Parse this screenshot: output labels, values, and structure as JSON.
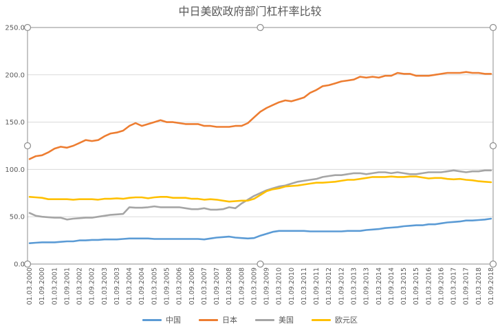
{
  "chart_data": {
    "type": "line",
    "title": "中日美欧政府部门杠杆率比较",
    "xlabel": "",
    "ylabel": "",
    "ylim": [
      0,
      250
    ],
    "yticks": [
      "0.0",
      "50.0",
      "100.0",
      "150.0",
      "200.0",
      "250.0"
    ],
    "grid": "horizontal",
    "legend_position": "bottom",
    "x": [
      "01.03.2000",
      "01.06.2000",
      "01.09.2000",
      "01.12.2000",
      "01.03.2001",
      "01.06.2001",
      "01.09.2001",
      "01.12.2001",
      "01.03.2002",
      "01.06.2002",
      "01.09.2002",
      "01.12.2002",
      "01.03.2003",
      "01.06.2003",
      "01.09.2003",
      "01.12.2003",
      "01.03.2004",
      "01.06.2004",
      "01.09.2004",
      "01.12.2004",
      "01.03.2005",
      "01.06.2005",
      "01.09.2005",
      "01.12.2005",
      "01.03.2006",
      "01.06.2006",
      "01.09.2006",
      "01.12.2006",
      "01.03.2007",
      "01.06.2007",
      "01.09.2007",
      "01.12.2007",
      "01.03.2008",
      "01.06.2008",
      "01.09.2008",
      "01.12.2008",
      "01.03.2009",
      "01.06.2009",
      "01.09.2009",
      "01.12.2009",
      "01.03.2010",
      "01.06.2010",
      "01.09.2010",
      "01.12.2010",
      "01.03.2011",
      "01.06.2011",
      "01.09.2011",
      "01.12.2011",
      "01.03.2012",
      "01.06.2012",
      "01.09.2012",
      "01.12.2012",
      "01.03.2013",
      "01.06.2013",
      "01.09.2013",
      "01.12.2013",
      "01.03.2014",
      "01.06.2014",
      "01.09.2014",
      "01.12.2014",
      "01.03.2015",
      "01.06.2015",
      "01.09.2015",
      "01.12.2015",
      "01.03.2016",
      "01.06.2016",
      "01.09.2016",
      "01.12.2016",
      "01.03.2017",
      "01.06.2017",
      "01.09.2017",
      "01.12.2017",
      "01.03.2018",
      "01.06.2018",
      "01.09.2018"
    ],
    "x_tick_labels": [
      "01.03.2000",
      "01.09.2000",
      "01.03.2001",
      "01.09.2001",
      "01.03.2002",
      "01.09.2002",
      "01.03.2003",
      "01.09.2003",
      "01.03.2004",
      "01.09.2004",
      "01.03.2005",
      "01.09.2005",
      "01.03.2006",
      "01.09.2006",
      "01.03.2007",
      "01.09.2007",
      "01.03.2008",
      "01.09.2008",
      "01.03.2009",
      "01.09.2009",
      "01.03.2010",
      "01.09.2010",
      "01.03.2011",
      "01.09.2011",
      "01.03.2012",
      "01.09.2012",
      "01.03.2013",
      "01.09.2013",
      "01.03.2014",
      "01.09.2014",
      "01.03.2015",
      "01.09.2015",
      "01.03.2016",
      "01.09.2016",
      "01.03.2017",
      "01.09.2017",
      "01.03.2018",
      "01.09.2018"
    ],
    "series": [
      {
        "name": "中国",
        "color": "#5B9BD5",
        "values": [
          22,
          22.5,
          23,
          23,
          23,
          23.5,
          24,
          24,
          25,
          25,
          25.5,
          25.5,
          26,
          26,
          26,
          26.5,
          27,
          27,
          27,
          27,
          26.5,
          26.5,
          26.5,
          26.5,
          26.5,
          26.5,
          26.5,
          26.5,
          26,
          27,
          28,
          28.5,
          29,
          28,
          27.5,
          27,
          27.5,
          30,
          32,
          34,
          35,
          35,
          35,
          35,
          35,
          34.5,
          34.5,
          34.5,
          34.5,
          34.5,
          34.5,
          35,
          35,
          35,
          36,
          36.5,
          37,
          38,
          38.5,
          39,
          40,
          40.5,
          41,
          41,
          42,
          42,
          43,
          44,
          44.5,
          45,
          46,
          46,
          46.5,
          47,
          48
        ]
      },
      {
        "name": "日本",
        "color": "#ED7D31",
        "values": [
          111,
          114,
          115,
          118,
          122,
          124,
          123,
          125,
          128,
          131,
          130,
          131,
          135,
          138,
          139,
          141,
          146,
          149,
          146,
          148,
          150,
          152,
          150,
          150,
          149,
          148,
          148,
          148,
          146,
          146,
          145,
          145,
          145,
          146,
          146,
          149,
          155,
          161,
          165,
          168,
          171,
          173,
          172,
          174,
          176,
          181,
          184,
          188,
          189,
          191,
          193,
          194,
          195,
          198,
          197,
          198,
          197,
          199,
          199,
          202,
          201,
          201,
          199,
          199,
          199,
          200,
          201,
          202,
          202,
          202,
          203,
          202,
          202,
          201,
          201
        ]
      },
      {
        "name": "美国",
        "color": "#A5A5A5",
        "values": [
          54,
          51,
          50,
          49.5,
          49,
          49,
          47,
          48,
          48.5,
          49,
          49,
          50,
          51,
          52,
          52.5,
          53,
          60,
          59.5,
          59.5,
          60,
          61,
          60,
          60,
          60,
          60,
          59,
          58,
          58,
          59,
          57.5,
          57.5,
          58,
          60,
          59,
          64,
          68,
          72,
          75,
          78,
          80,
          82,
          83,
          85,
          87,
          88,
          89,
          90,
          92,
          93,
          94,
          94,
          95,
          96,
          96,
          95,
          96,
          97,
          97,
          96,
          97,
          96,
          95,
          95,
          96,
          97,
          97,
          97,
          98,
          99,
          98,
          97,
          98,
          98,
          99,
          99
        ]
      },
      {
        "name": "欧元区",
        "color": "#FFC000",
        "values": [
          71,
          70.5,
          70,
          68.5,
          68.5,
          68.5,
          68.5,
          68,
          68.5,
          68.5,
          68.5,
          68,
          69,
          69,
          69.5,
          69,
          70,
          70.5,
          70.5,
          69.5,
          70.5,
          71,
          71,
          70,
          70,
          70,
          69,
          69,
          68,
          68.5,
          68,
          67,
          66,
          66.5,
          67,
          67,
          69,
          73,
          77,
          79,
          80,
          82,
          82.5,
          83,
          84,
          85,
          86,
          86,
          86.5,
          87,
          88,
          89,
          89,
          90,
          91,
          92,
          92,
          92,
          92.5,
          92,
          92,
          92.5,
          92.5,
          91.5,
          90.5,
          91,
          91,
          90,
          89.5,
          90,
          89,
          88.5,
          87.5,
          87,
          86.5
        ]
      }
    ]
  }
}
